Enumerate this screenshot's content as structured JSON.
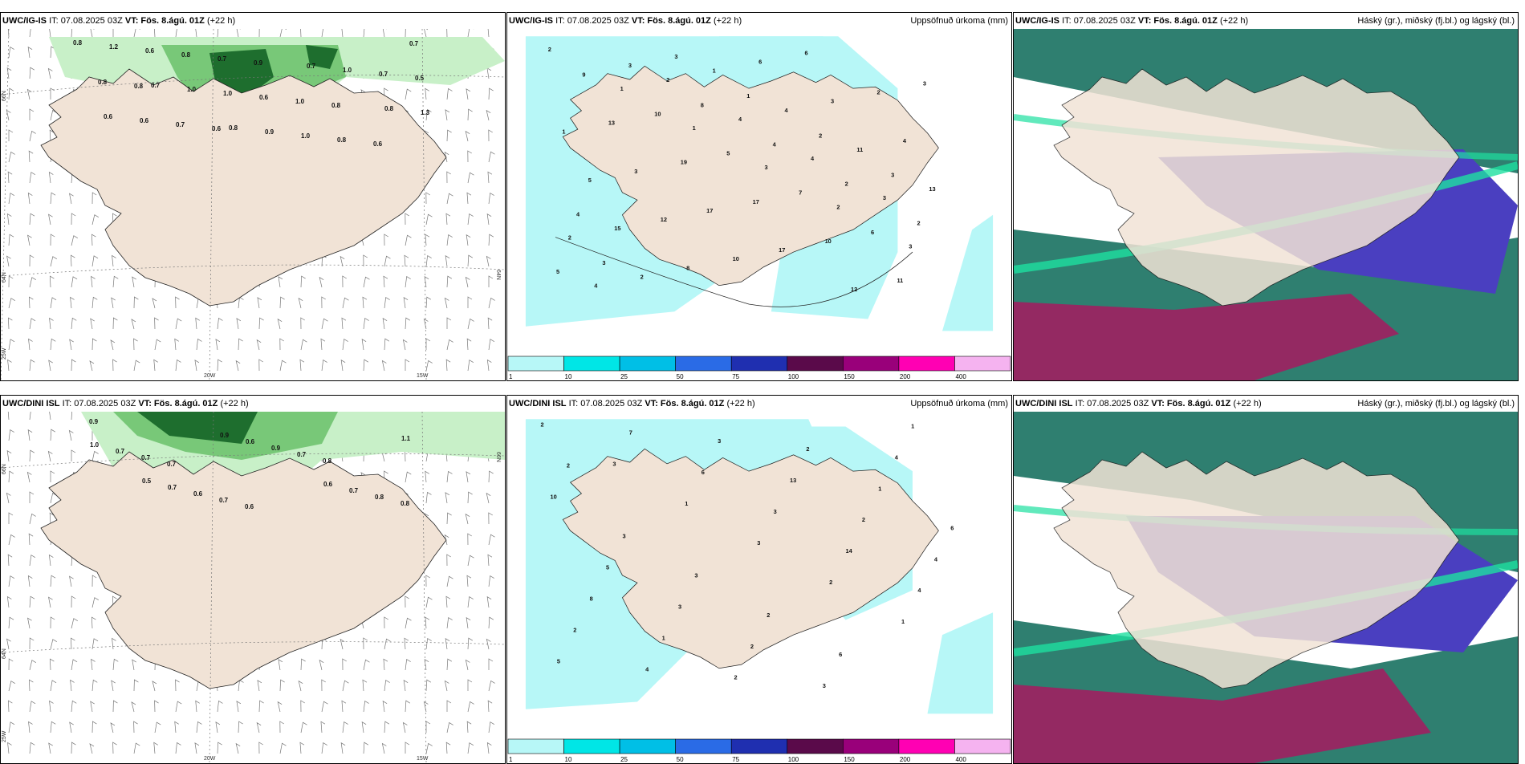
{
  "panels": [
    {
      "model": "UWC/IG-IS",
      "it": "IT: 07.08.2025 03Z",
      "vt": "VT: Fös. 8.ágú. 01Z",
      "lead": "(+22 h)",
      "right_title": ""
    },
    {
      "model": "UWC/IG-IS",
      "it": "IT: 07.08.2025 03Z",
      "vt": "VT: Fös. 8.ágú. 01Z",
      "lead": "(+22 h)",
      "right_title": "Uppsöfnuð úrkoma (mm)"
    },
    {
      "model": "UWC/IG-IS",
      "it": "IT: 07.08.2025 03Z",
      "vt": "VT: Fös. 8.ágú. 01Z",
      "lead": "(+22 h)",
      "right_title": "Háský (gr.), miðský (fj.bl.) og lágský (bl.)"
    },
    {
      "model": "UWC/DINI ISL",
      "it": "IT: 07.08.2025 03Z",
      "vt": "VT: Fös. 8.ágú. 01Z",
      "lead": "(+22 h)",
      "right_title": ""
    },
    {
      "model": "UWC/DINI ISL",
      "it": "IT: 07.08.2025 03Z",
      "vt": "VT: Fös. 8.ágú. 01Z",
      "lead": "(+22 h)",
      "right_title": "Uppsöfnuð úrkoma (mm)"
    },
    {
      "model": "UWC/DINI ISL",
      "it": "IT: 07.08.2025 03Z",
      "vt": "VT: Fös. 8.ágú. 01Z",
      "lead": "(+22 h)",
      "right_title": "Háský (gr.), miðský (fj.bl.) og lágský (bl.)"
    }
  ],
  "lat_lon_labels": {
    "lat_66": "66N",
    "lat_64": "64N",
    "lat_top_right": "66N",
    "lat_right_mid": "64N",
    "lon_20": "20W",
    "lon_15": "15W",
    "lon_25": "25W"
  },
  "colorbar": {
    "ticks": [
      "1",
      "10",
      "25",
      "50",
      "75",
      "100",
      "150",
      "200",
      "400"
    ],
    "colors": [
      "#b7f7f7",
      "#00e6e6",
      "#00bfe6",
      "#2a6be6",
      "#1f2fb0",
      "#5a0a4a",
      "#99007a",
      "#ff00b3",
      "#f5b3f0"
    ]
  },
  "wind_precip_values_top": [
    "0.8",
    "0.7",
    "0.8",
    "0.7",
    "0.8",
    "1.2",
    "1.0",
    "0.9",
    "1.0",
    "1.3",
    "0.6",
    "1.0",
    "1.0",
    "0.7",
    "0.6",
    "0.8",
    "0.6",
    "0.8",
    "0.5",
    "0.6",
    "0.7",
    "1.0",
    "0.6",
    "0.8",
    "0.7",
    "0.9",
    "0.8",
    "0.7",
    "0.8",
    "0.6"
  ],
  "wind_precip_values_bottom": [
    "0.9",
    "0.7",
    "0.6",
    "0.8",
    "0.8",
    "0.7",
    "0.7",
    "0.7",
    "0.8",
    "0.7",
    "0.6",
    "0.9",
    "0.7",
    "1.0",
    "0.7",
    "0.6",
    "0.6",
    "1.1",
    "0.5",
    "0.9"
  ],
  "accum_values_top": [
    "2",
    "1",
    "1",
    "3",
    "2",
    "3",
    "4",
    "2",
    "4",
    "4",
    "3",
    "2",
    "2",
    "1",
    "4",
    "11",
    "13",
    "15",
    "8",
    "6",
    "3",
    "4",
    "5",
    "12",
    "10",
    "6",
    "2",
    "1",
    "3",
    "17",
    "17",
    "12",
    "3",
    "13",
    "19",
    "17",
    "10",
    "11",
    "9",
    "10",
    "5",
    "7",
    "6",
    "5",
    "3",
    "8",
    "4",
    "2",
    "2",
    "3",
    "3",
    "1",
    "2",
    "3",
    "4"
  ],
  "accum_values_bottom": [
    "2",
    "3",
    "1",
    "3",
    "2",
    "1",
    "5",
    "7",
    "6",
    "3",
    "14",
    "4",
    "2",
    "4",
    "3",
    "13",
    "2",
    "4",
    "8",
    "1",
    "2",
    "2",
    "1",
    "6",
    "5",
    "3",
    "2",
    "3",
    "4",
    "10",
    "3",
    "3",
    "2",
    "6",
    "1",
    "2"
  ],
  "colors": {
    "land": "#f1e3d6",
    "precip_light": "#b7f7f7",
    "wind_green_light": "#c8f0c8",
    "wind_green_mid": "#78c878",
    "wind_green_dark": "#1e6e2e",
    "cloud_high": "#2f7f70",
    "cloud_mid": "#4a3fc0",
    "cloud_low": "#a02060",
    "cloud_edge": "#1ee0a0"
  }
}
